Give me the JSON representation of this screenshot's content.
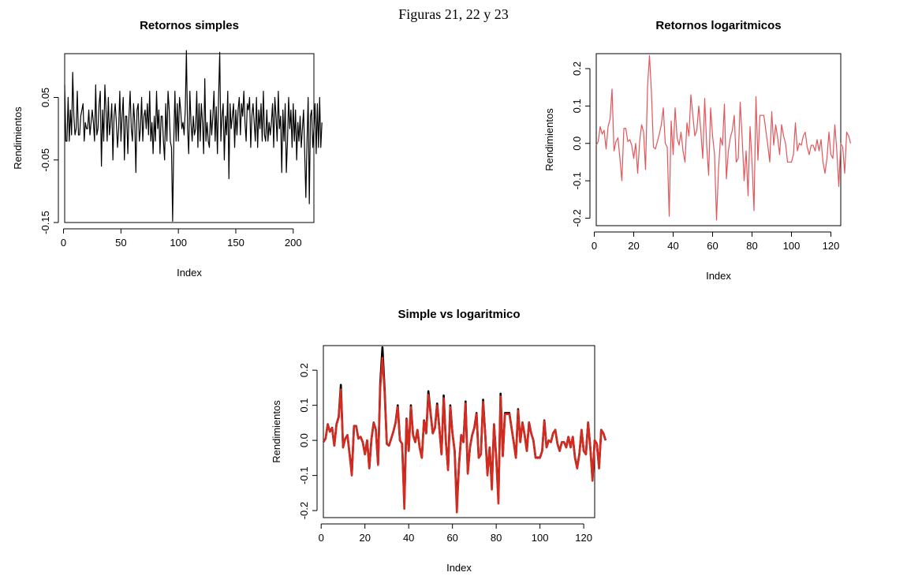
{
  "caption": "Figuras 21, 22 y 23",
  "chart_data": [
    {
      "type": "line",
      "title": "Retornos simples",
      "xlabel": "Index",
      "ylabel": "Rendimientos",
      "xlim": [
        1,
        218
      ],
      "ylim": [
        -0.15,
        0.12
      ],
      "xticks": [
        0,
        50,
        100,
        150,
        200
      ],
      "yticks": [
        -0.15,
        -0.05,
        0.05
      ],
      "ytick_labels": [
        "-0.15",
        "-0.05",
        "0.05"
      ],
      "series": [
        {
          "color": "#000000",
          "y": [
            0.07,
            -0.02,
            -0.02,
            0.05,
            -0.02,
            0.03,
            -0.01,
            0.09,
            0.02,
            -0.01,
            0.0,
            0.06,
            -0.01,
            -0.01,
            0.02,
            0.03,
            0.04,
            -0.02,
            0.01,
            0.0,
            0.0,
            0.03,
            -0.01,
            0.01,
            0.03,
            0.01,
            -0.02,
            0.07,
            -0.01,
            0.0,
            0.04,
            0.06,
            -0.06,
            0.03,
            -0.02,
            0.07,
            0.03,
            -0.02,
            0.05,
            -0.01,
            0.01,
            0.04,
            -0.05,
            0.02,
            0.04,
            0.01,
            -0.03,
            0.0,
            0.06,
            -0.02,
            0.02,
            0.05,
            -0.05,
            0.02,
            0.02,
            -0.04,
            0.02,
            0.06,
            0.0,
            -0.02,
            0.04,
            0.01,
            -0.07,
            0.03,
            0.04,
            -0.02,
            0.0,
            0.05,
            -0.02,
            0.02,
            0.03,
            0.0,
            0.04,
            -0.01,
            0.06,
            -0.02,
            0.01,
            -0.04,
            0.02,
            -0.02,
            0.06,
            0.0,
            0.03,
            -0.04,
            0.02,
            0.02,
            -0.02,
            -0.05,
            0.04,
            -0.02,
            0.06,
            0.03,
            -0.02,
            -0.03,
            -0.148,
            -0.02,
            0.06,
            -0.02,
            0.04,
            -0.02,
            0.05,
            0.03,
            0.0,
            0.01,
            -0.01,
            0.03,
            0.125,
            0.0,
            -0.04,
            0.06,
            0.01,
            -0.02,
            0.02,
            -0.01,
            0.0,
            0.06,
            -0.03,
            0.04,
            -0.02,
            0.04,
            0.01,
            -0.04,
            0.08,
            -0.02,
            0.01,
            -0.02,
            -0.03,
            0.03,
            -0.01,
            0.02,
            0.06,
            -0.02,
            0.035,
            -0.04,
            0.05,
            0.122,
            -0.02,
            0.02,
            0.04,
            -0.05,
            0.02,
            -0.01,
            0.06,
            -0.08,
            0.04,
            0.0,
            0.02,
            0.04,
            -0.03,
            0.03,
            -0.01,
            0.03,
            0.05,
            -0.01,
            0.04,
            0.02,
            0.06,
            0.01,
            -0.02,
            0.04,
            0.03,
            0.05,
            -0.03,
            0.02,
            0.04,
            0.01,
            -0.02,
            0.05,
            -0.03,
            0.03,
            0.0,
            0.04,
            -0.02,
            0.06,
            -0.01,
            -0.02,
            0.03,
            -0.02,
            0.01,
            -0.01,
            0.01,
            0.04,
            -0.03,
            0.05,
            0.02,
            -0.02,
            0.06,
            0.0,
            0.02,
            -0.07,
            0.03,
            -0.02,
            0.04,
            -0.07,
            -0.02,
            0.05,
            0.0,
            0.03,
            -0.03,
            0.04,
            -0.02,
            0.03,
            -0.05,
            0.01,
            -0.02,
            0.02,
            -0.03,
            0.0,
            0.03,
            -0.04,
            -0.11,
            -0.02,
            0.05,
            -0.12,
            0.02,
            0.03,
            -0.03,
            0.0,
            0.04,
            -0.04,
            0.04,
            -0.03,
            0.05,
            -0.03,
            0.01
          ]
        }
      ]
    },
    {
      "type": "line",
      "title": "Retornos logaritmicos",
      "xlabel": "Index",
      "ylabel": "Rendimientos",
      "xlim": [
        1,
        125
      ],
      "ylim": [
        -0.22,
        0.24
      ],
      "xticks": [
        0,
        20,
        40,
        60,
        80,
        100,
        120
      ],
      "yticks": [
        -0.2,
        -0.1,
        0.0,
        0.1,
        0.2
      ],
      "ytick_labels": [
        "-0.2",
        "-0.1",
        "0.0",
        "0.1",
        "0.2"
      ],
      "series": [
        {
          "color": "#e4555a",
          "y": [
            -0.005,
            0.005,
            0.045,
            0.025,
            0.035,
            -0.015,
            0.045,
            0.065,
            0.145,
            -0.02,
            0.005,
            0.015,
            -0.04,
            -0.1,
            0.04,
            0.04,
            0.005,
            0.01,
            -0.005,
            -0.04,
            0.0,
            -0.08,
            0.005,
            0.05,
            0.03,
            -0.07,
            0.15,
            0.235,
            0.135,
            -0.01,
            -0.015,
            0.005,
            0.025,
            0.05,
            0.095,
            0.0,
            -0.01,
            -0.195,
            0.06,
            -0.03,
            0.095,
            0.015,
            -0.005,
            0.03,
            -0.02,
            -0.05,
            0.055,
            0.02,
            0.13,
            0.075,
            0.02,
            0.035,
            0.1,
            0.035,
            -0.04,
            0.12,
            -0.005,
            -0.085,
            0.095,
            0.02,
            -0.03,
            -0.205,
            -0.07,
            0.015,
            -0.005,
            0.105,
            -0.095,
            -0.02,
            0.015,
            0.035,
            0.075,
            -0.05,
            -0.04,
            0.11,
            0.015,
            -0.1,
            -0.02,
            -0.14,
            0.045,
            -0.05,
            -0.18,
            0.125,
            -0.045,
            0.075,
            0.075,
            0.075,
            0.035,
            -0.005,
            -0.05,
            0.085,
            -0.005,
            0.05,
            0.015,
            -0.03,
            0.05,
            0.02,
            0.0,
            -0.05,
            -0.05,
            -0.05,
            -0.03,
            0.055,
            -0.02,
            0.0,
            -0.005,
            0.02,
            0.03,
            -0.01,
            -0.03,
            -0.005,
            -0.005,
            -0.02,
            0.01,
            -0.02,
            0.01,
            -0.05,
            -0.08,
            -0.04,
            0.03,
            -0.03,
            -0.04,
            0.05,
            -0.02,
            -0.115,
            0.0,
            -0.01,
            -0.08,
            0.03,
            0.02,
            0.0
          ]
        }
      ]
    },
    {
      "type": "line",
      "title": "Simple vs logaritmico",
      "xlabel": "Index",
      "ylabel": "Rendimientos",
      "xlim": [
        1,
        125
      ],
      "ylim": [
        -0.22,
        0.27
      ],
      "xticks": [
        0,
        20,
        40,
        60,
        80,
        100,
        120
      ],
      "yticks": [
        -0.2,
        -0.1,
        0.0,
        0.1,
        0.2
      ],
      "ytick_labels": [
        "-0.2",
        "-0.1",
        "0.0",
        "0.1",
        "0.2"
      ],
      "series": [
        {
          "color": "#000000",
          "y": [
            -0.005,
            0.005,
            0.046,
            0.025,
            0.036,
            -0.015,
            0.046,
            0.067,
            0.158,
            -0.02,
            0.005,
            0.015,
            -0.039,
            -0.095,
            0.041,
            0.041,
            0.005,
            0.01,
            -0.005,
            -0.039,
            0.0,
            -0.077,
            0.005,
            0.051,
            0.03,
            -0.068,
            0.164,
            0.265,
            0.146,
            -0.01,
            -0.015,
            0.005,
            0.025,
            0.051,
            0.1,
            0.0,
            -0.01,
            -0.178,
            0.062,
            -0.03,
            0.1,
            0.015,
            -0.005,
            0.03,
            -0.02,
            -0.049,
            0.057,
            0.02,
            0.14,
            0.078,
            0.02,
            0.036,
            0.105,
            0.036,
            -0.039,
            0.128,
            -0.005,
            -0.082,
            0.1,
            0.02,
            -0.03,
            -0.185,
            -0.068,
            0.015,
            -0.005,
            0.111,
            -0.091,
            -0.02,
            0.015,
            0.036,
            0.078,
            -0.049,
            -0.039,
            0.116,
            0.015,
            -0.095,
            -0.02,
            -0.131,
            0.046,
            -0.049,
            -0.165,
            0.133,
            -0.044,
            0.078,
            0.078,
            0.078,
            0.036,
            -0.005,
            -0.049,
            0.089,
            -0.005,
            0.051,
            0.015,
            -0.03,
            0.051,
            0.02,
            0.0,
            -0.049,
            -0.049,
            -0.049,
            -0.03,
            0.057,
            -0.02,
            0.0,
            -0.005,
            0.02,
            0.03,
            -0.01,
            -0.03,
            -0.005,
            -0.005,
            -0.02,
            0.01,
            -0.02,
            0.01,
            -0.049,
            -0.077,
            -0.039,
            0.03,
            -0.03,
            -0.039,
            0.051,
            -0.02,
            -0.109,
            0.0,
            -0.01,
            -0.077,
            0.03,
            0.02,
            0.0
          ]
        },
        {
          "color": "#d42a20",
          "y": [
            -0.005,
            0.005,
            0.045,
            0.025,
            0.035,
            -0.015,
            0.045,
            0.065,
            0.145,
            -0.02,
            0.005,
            0.015,
            -0.04,
            -0.1,
            0.04,
            0.04,
            0.005,
            0.01,
            -0.005,
            -0.04,
            0.0,
            -0.08,
            0.005,
            0.05,
            0.03,
            -0.07,
            0.15,
            0.235,
            0.135,
            -0.01,
            -0.015,
            0.005,
            0.025,
            0.05,
            0.095,
            0.0,
            -0.01,
            -0.195,
            0.06,
            -0.03,
            0.095,
            0.015,
            -0.005,
            0.03,
            -0.02,
            -0.05,
            0.055,
            0.02,
            0.13,
            0.075,
            0.02,
            0.035,
            0.1,
            0.035,
            -0.04,
            0.12,
            -0.005,
            -0.085,
            0.095,
            0.02,
            -0.03,
            -0.205,
            -0.07,
            0.015,
            -0.005,
            0.105,
            -0.095,
            -0.02,
            0.015,
            0.035,
            0.075,
            -0.05,
            -0.04,
            0.11,
            0.015,
            -0.1,
            -0.02,
            -0.14,
            0.045,
            -0.05,
            -0.18,
            0.125,
            -0.045,
            0.075,
            0.075,
            0.075,
            0.035,
            -0.005,
            -0.05,
            0.085,
            -0.005,
            0.05,
            0.015,
            -0.03,
            0.05,
            0.02,
            0.0,
            -0.05,
            -0.05,
            -0.05,
            -0.03,
            0.055,
            -0.02,
            0.0,
            -0.005,
            0.02,
            0.03,
            -0.01,
            -0.03,
            -0.005,
            -0.005,
            -0.02,
            0.01,
            -0.02,
            0.01,
            -0.05,
            -0.08,
            -0.04,
            0.03,
            -0.03,
            -0.04,
            0.05,
            -0.02,
            -0.115,
            0.0,
            -0.01,
            -0.08,
            0.03,
            0.02,
            0.0
          ]
        }
      ]
    }
  ]
}
